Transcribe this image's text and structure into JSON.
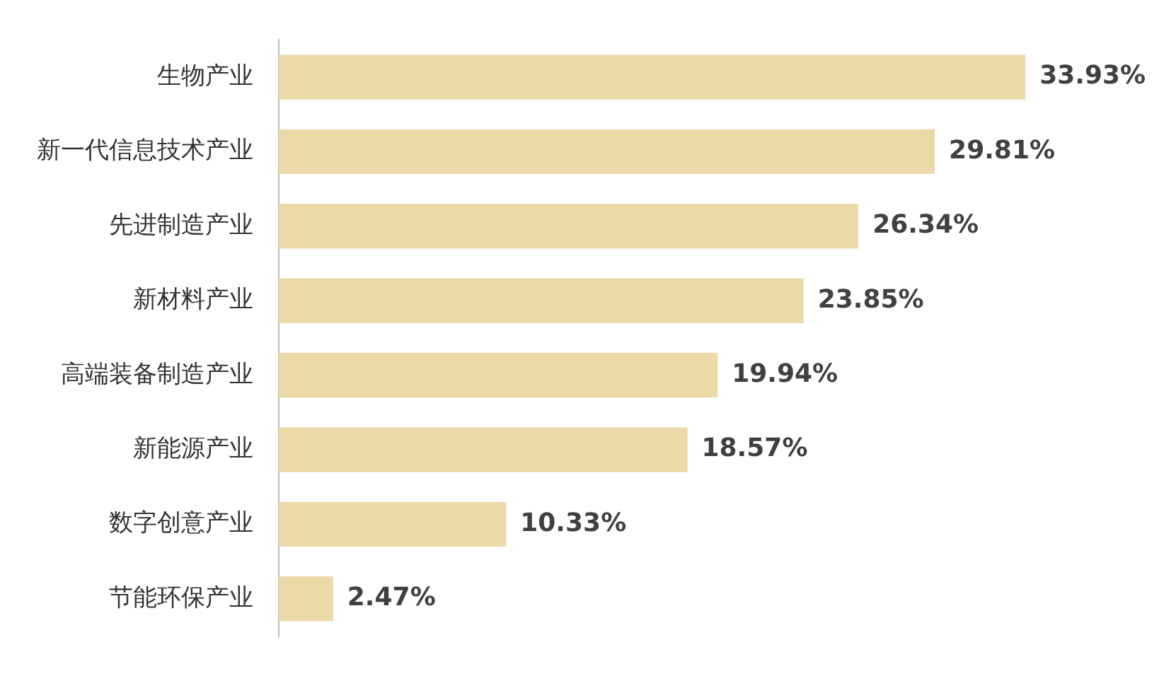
{
  "chart_data": {
    "type": "bar",
    "orientation": "horizontal",
    "categories": [
      "生物产业",
      "新一代信息技术产业",
      "先进制造产业",
      "新材料产业",
      "高端装备制造产业",
      "新能源产业",
      "数字创意产业",
      "节能环保产业"
    ],
    "values": [
      33.93,
      29.81,
      26.34,
      23.85,
      19.94,
      18.57,
      10.33,
      2.47
    ],
    "value_labels": [
      "33.93%",
      "29.81%",
      "26.34%",
      "23.85%",
      "19.94%",
      "18.57%",
      "10.33%",
      "2.47%"
    ],
    "color": "#ecd9a8"
  }
}
